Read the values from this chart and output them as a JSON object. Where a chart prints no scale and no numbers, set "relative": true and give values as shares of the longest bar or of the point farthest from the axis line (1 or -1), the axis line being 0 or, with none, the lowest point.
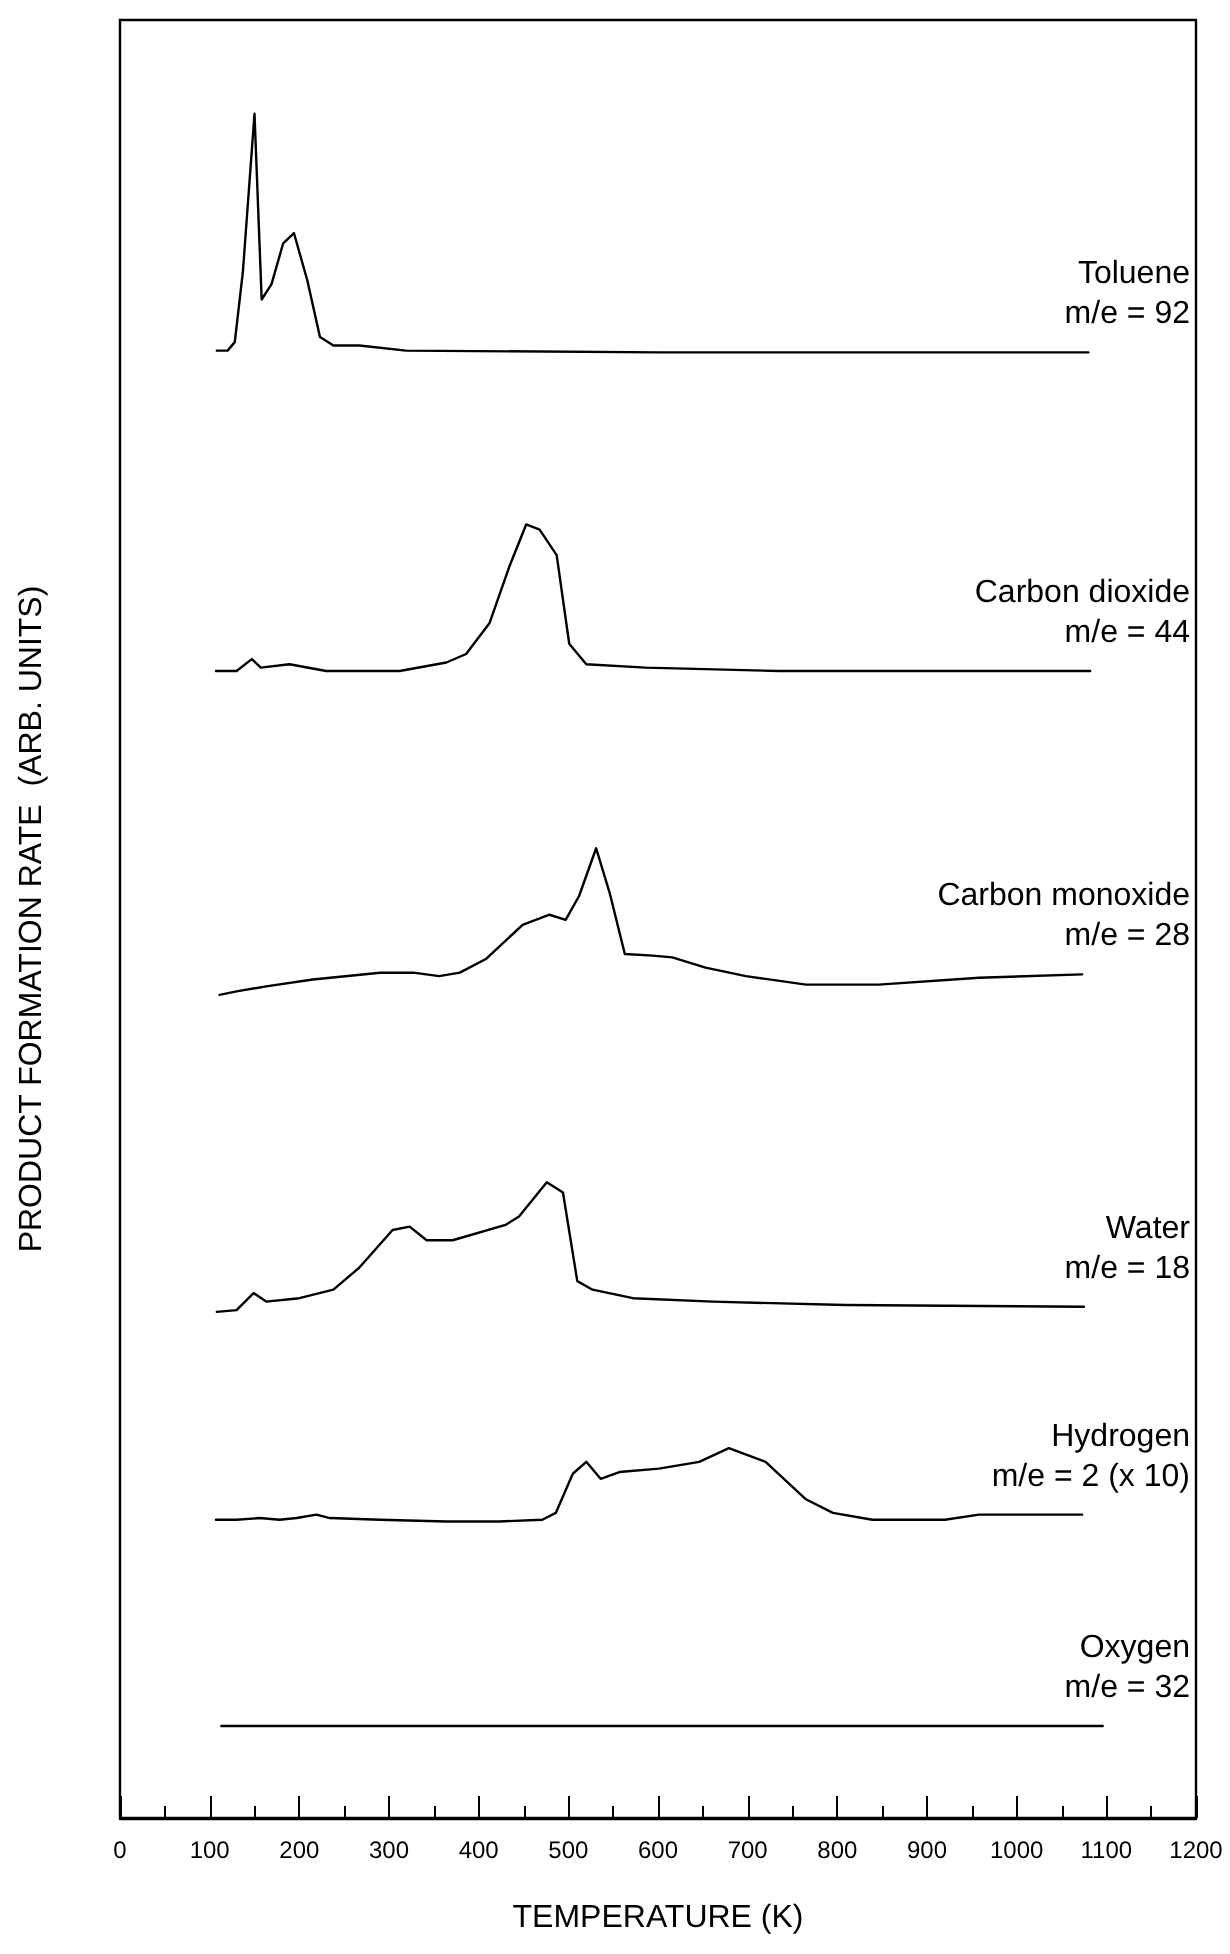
{
  "chart_data": {
    "type": "line",
    "relative": true,
    "xlabel": "TEMPERATURE (K)",
    "ylabel": "PRODUCT FORMATION RATE  (ARB. UNITS)",
    "xlim": [
      0,
      1200
    ],
    "xticks": [
      0,
      {
        "value": 50,
        "label": null
      },
      100,
      {
        "value": 150,
        "label": null
      },
      200,
      {
        "value": 250,
        "label": null
      },
      300,
      {
        "value": 350,
        "label": null
      },
      400,
      {
        "value": 450,
        "label": null
      },
      500,
      {
        "value": 550,
        "label": null
      },
      600,
      {
        "value": 650,
        "label": null
      },
      700,
      {
        "value": 750,
        "label": null
      },
      800,
      {
        "value": 850,
        "label": null
      },
      900,
      {
        "value": 950,
        "label": null
      },
      1000,
      {
        "value": 1050,
        "label": null
      },
      1100,
      {
        "value": 1150,
        "label": null
      },
      1200
    ],
    "grid": false,
    "legend": false,
    "marker": "none",
    "line_style": "solid",
    "series": [
      {
        "name": "Toluene\nm/e = 92",
        "color": "#000000",
        "x": [
          108,
          120,
          128,
          137,
          150,
          158,
          169,
          182,
          194,
          209,
          223,
          238,
          267,
          319,
          601,
          1080
        ],
        "values": [
          0.861,
          0.861,
          0.866,
          0.907,
          1.0,
          0.891,
          0.9,
          0.924,
          0.93,
          0.902,
          0.869,
          0.864,
          0.864,
          0.861,
          0.86,
          0.86
        ]
      },
      {
        "name": "Carbon dioxide\nm/e = 44",
        "color": "#000000",
        "x": [
          107,
          130,
          147,
          157,
          189,
          230,
          312,
          364,
          386,
          412,
          434,
          453,
          468,
          487,
          501,
          520,
          586,
          735,
          1082
        ],
        "values": [
          0.673,
          0.673,
          0.68,
          0.675,
          0.677,
          0.673,
          0.673,
          0.678,
          0.683,
          0.701,
          0.734,
          0.759,
          0.756,
          0.741,
          0.689,
          0.677,
          0.675,
          0.673,
          0.673
        ]
      },
      {
        "name": "Carbon monoxide\nm/e = 28",
        "color": "#000000",
        "x": [
          111,
          130,
          163,
          215,
          290,
          327,
          356,
          379,
          408,
          449,
          479,
          497,
          512,
          531,
          546,
          563,
          594,
          616,
          653,
          698,
          765,
          846,
          958,
          1073
        ],
        "values": [
          0.483,
          0.485,
          0.488,
          0.492,
          0.496,
          0.496,
          0.494,
          0.496,
          0.504,
          0.524,
          0.53,
          0.527,
          0.541,
          0.569,
          0.543,
          0.507,
          0.506,
          0.505,
          0.499,
          0.494,
          0.489,
          0.489,
          0.493,
          0.495
        ]
      },
      {
        "name": "Water\nm/e = 18",
        "color": "#000000",
        "x": [
          108,
          130,
          149,
          163,
          200,
          238,
          267,
          304,
          323,
          342,
          371,
          430,
          445,
          476,
          494,
          510,
          527,
          572,
          661,
          809,
          1075
        ],
        "values": [
          0.297,
          0.298,
          0.308,
          0.303,
          0.305,
          0.31,
          0.323,
          0.345,
          0.347,
          0.339,
          0.339,
          0.348,
          0.353,
          0.373,
          0.367,
          0.315,
          0.31,
          0.305,
          0.303,
          0.301,
          0.3
        ]
      },
      {
        "name": "Hydrogen\nm/e = 2 (x 10)",
        "color": "#000000",
        "x": [
          107,
          130,
          156,
          178,
          197,
          219,
          234,
          290,
          364,
          423,
          471,
          486,
          505,
          520,
          536,
          557,
          601,
          646,
          679,
          720,
          765,
          795,
          839,
          920,
          958,
          995,
          1073
        ],
        "values": [
          0.175,
          0.175,
          0.176,
          0.175,
          0.176,
          0.178,
          0.176,
          0.175,
          0.174,
          0.174,
          0.175,
          0.179,
          0.202,
          0.209,
          0.199,
          0.203,
          0.205,
          0.209,
          0.217,
          0.209,
          0.187,
          0.179,
          0.175,
          0.175,
          0.178,
          0.178,
          0.178
        ]
      },
      {
        "name": "Oxygen\nm/e = 32",
        "color": "#000000",
        "x": [
          113,
          1096
        ],
        "values": [
          0.054,
          0.054
        ]
      }
    ]
  }
}
